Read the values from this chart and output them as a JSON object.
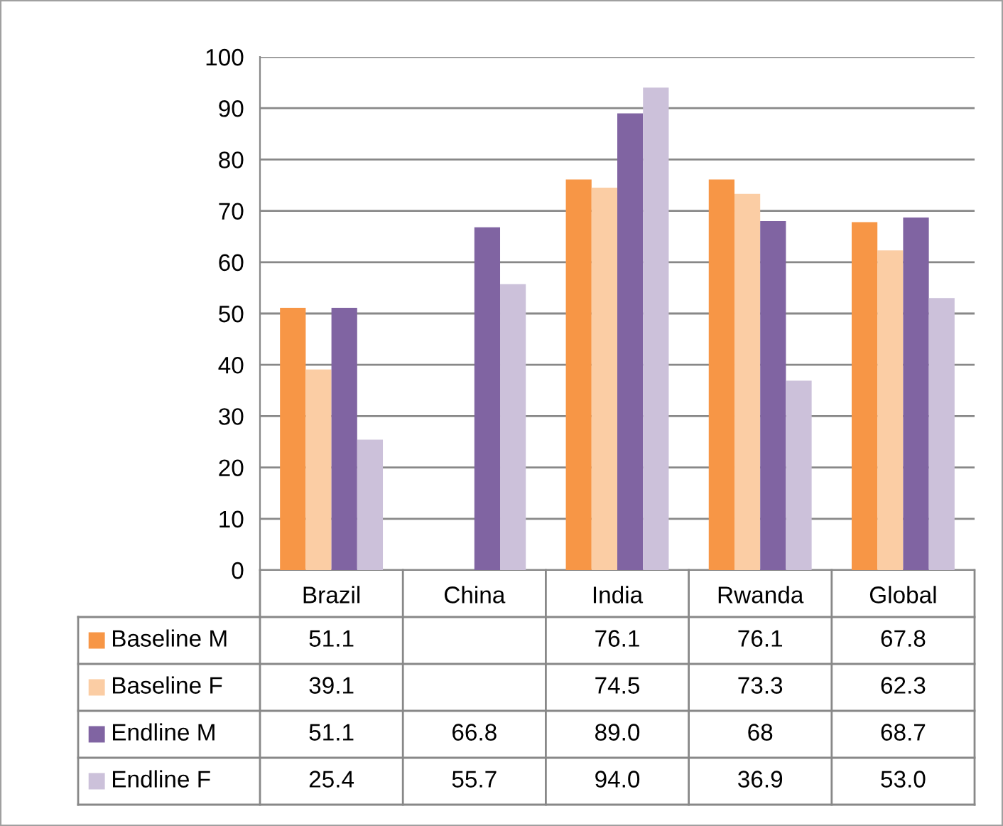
{
  "chart_data": {
    "type": "bar",
    "categories": [
      "Brazil",
      "China",
      "India",
      "Rwanda",
      "Global"
    ],
    "series": [
      {
        "name": "Baseline M",
        "color": "#f79646",
        "values": [
          51.1,
          null,
          76.1,
          76.1,
          67.8
        ],
        "value_labels": [
          "51.1",
          null,
          "76.1",
          "76.1",
          "67.8"
        ]
      },
      {
        "name": "Baseline F",
        "color": "#fbcda4",
        "values": [
          39.1,
          null,
          74.5,
          73.3,
          62.3
        ],
        "value_labels": [
          "39.1",
          null,
          "74.5",
          "73.3",
          "62.3"
        ]
      },
      {
        "name": "Endline M",
        "color": "#8064a2",
        "values": [
          51.1,
          66.8,
          89.0,
          68,
          68.7
        ],
        "value_labels": [
          "51.1",
          "66.8",
          "89.0",
          "68",
          "68.7"
        ]
      },
      {
        "name": "Endline F",
        "color": "#ccc1da",
        "values": [
          25.4,
          55.7,
          94.0,
          36.9,
          53.0
        ],
        "value_labels": [
          "25.4",
          "55.7",
          "94.0",
          "36.9",
          "53.0"
        ]
      }
    ],
    "ylim": [
      0,
      100
    ],
    "yticks": [
      0,
      10,
      20,
      30,
      40,
      50,
      60,
      70,
      80,
      90,
      100
    ],
    "grid": "y",
    "legend": "bottom left"
  }
}
